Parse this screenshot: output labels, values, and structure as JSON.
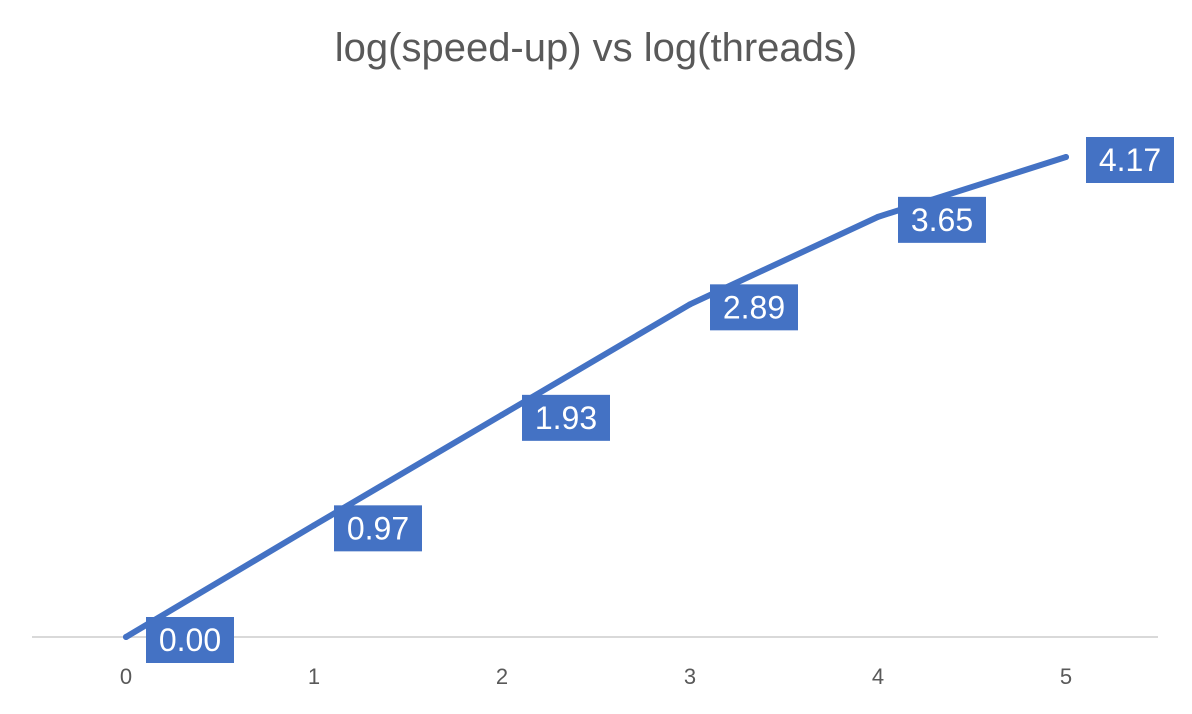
{
  "chart_data": {
    "type": "line",
    "title": "log(speed-up) vs log(threads)",
    "xlabel": "",
    "ylabel": "",
    "x": [
      0,
      1,
      2,
      3,
      4,
      5
    ],
    "tick_labels": [
      "0",
      "1",
      "2",
      "3",
      "4",
      "5"
    ],
    "series": [
      {
        "values": [
          0.0,
          0.97,
          1.93,
          2.89,
          3.65,
          4.17
        ],
        "data_labels": [
          "0.00",
          "0.97",
          "1.93",
          "2.89",
          "3.65",
          "4.17"
        ]
      }
    ],
    "ylim": [
      0,
      4.17
    ],
    "grid": false,
    "legend": "none",
    "colors": {
      "line": "#4472C4",
      "label_bg": "#4472C4",
      "label_text": "#FFFFFF",
      "axis": "#D9D9D9",
      "text": "#595959"
    }
  }
}
